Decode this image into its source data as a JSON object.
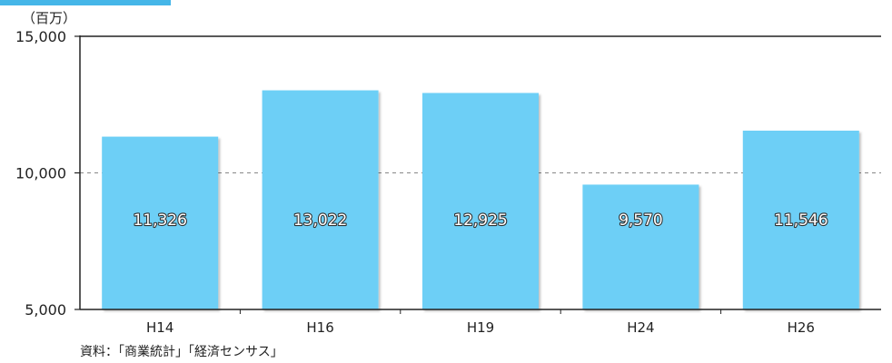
{
  "chart_data": {
    "type": "bar",
    "unit_label": "（百万）",
    "categories": [
      "H14",
      "H16",
      "H19",
      "H24",
      "H26"
    ],
    "values": [
      11326,
      13022,
      12925,
      9570,
      11546
    ],
    "value_labels": [
      "11,326",
      "13,022",
      "12,925",
      "9,570",
      "11,546"
    ],
    "ylim": [
      5000,
      15000
    ],
    "yticks": [
      {
        "value": 5000,
        "label": "5,000"
      },
      {
        "value": 10000,
        "label": "10,000"
      },
      {
        "value": 15000,
        "label": "15,000"
      }
    ],
    "gridline_values": [
      10000
    ],
    "bar_color": "#6dcff6",
    "accent_color": "#45b6e8",
    "source": "資料：「商業統計」「経済センサス」"
  }
}
